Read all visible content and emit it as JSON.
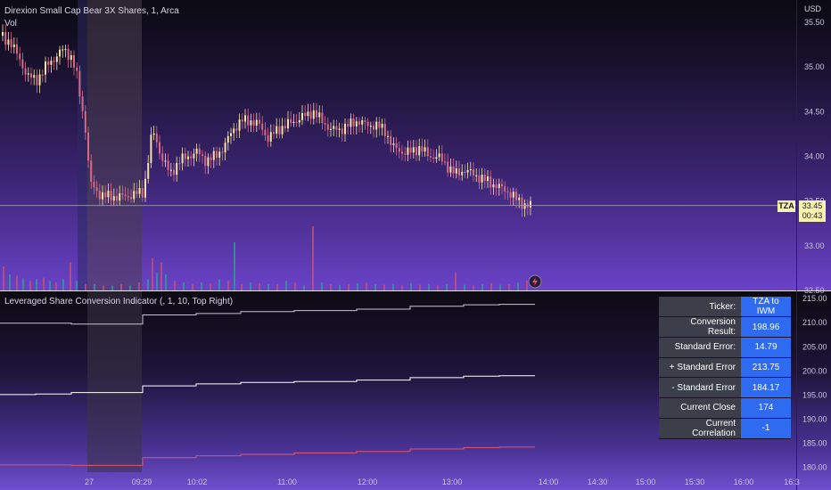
{
  "header": {
    "title": "Direxion Small Cap Bear 3X Shares, 1, Arca",
    "vol_label": "Vol",
    "currency": "USD"
  },
  "indicator": {
    "title": "Leveraged Share Conversion Indicator (, 1, 10, Top Right)"
  },
  "price_tag": {
    "ticker": "TZA",
    "price": "33.45",
    "countdown": "00:43"
  },
  "table": {
    "rows": [
      {
        "label": "Ticker:",
        "value": "TZA to IWM"
      },
      {
        "label": "Conversion Result:",
        "value": "198.96"
      },
      {
        "label": "Standard Error:",
        "value": "14.79"
      },
      {
        "label": "+ Standard Error",
        "value": "213.75"
      },
      {
        "label": "- Standard Error",
        "value": "184.17"
      },
      {
        "label": "Current Close",
        "value": "174"
      },
      {
        "label": "Current Correlation",
        "value": "-1"
      }
    ]
  },
  "colors": {
    "up": "#f3e2a2",
    "down": "#d86a86",
    "grid": "#ffffff",
    "upper": "#c9c3d9",
    "mid": "#ffffff",
    "lower": "#e0556e"
  },
  "chart_data": [
    {
      "type": "candlestick",
      "title": "Direxion Small Cap Bear 3X Shares, 1, Arca",
      "y_ticks": [
        "35.50",
        "35.00",
        "34.50",
        "34.00",
        "33.50",
        "33.00",
        "32.50"
      ],
      "y_tick_values": [
        35.5,
        35.0,
        34.5,
        34.0,
        33.5,
        33.0,
        32.5
      ],
      "ylim": [
        32.5,
        35.75
      ],
      "last_price": 33.45,
      "x_ticks": [
        "27",
        "09:29",
        "10:02",
        "11:00",
        "12:00",
        "13:00",
        "14:00",
        "14:30",
        "15:00",
        "15:30",
        "16:00",
        "16:3"
      ],
      "price_path_x": [
        0,
        5,
        10,
        20,
        30,
        40,
        50,
        60,
        70,
        80,
        85,
        95,
        100,
        110,
        120,
        130,
        140,
        150,
        160,
        165,
        170,
        180,
        190,
        200,
        210,
        220,
        230,
        240,
        250,
        260,
        270,
        280,
        290,
        300,
        310,
        320,
        330,
        340,
        350,
        360,
        370,
        380,
        390,
        400,
        410,
        420,
        430,
        440,
        450,
        460,
        470,
        480,
        490,
        500,
        510,
        520,
        530,
        540,
        550,
        560,
        570,
        580,
        590,
        596
      ],
      "price_path": [
        35.35,
        35.3,
        35.3,
        35.1,
        34.9,
        34.85,
        35.0,
        35.1,
        35.2,
        35.1,
        34.9,
        34.3,
        33.7,
        33.58,
        33.55,
        33.55,
        33.55,
        33.58,
        33.6,
        33.95,
        34.3,
        34.0,
        33.8,
        33.95,
        34.0,
        34.05,
        33.95,
        34.0,
        34.1,
        34.3,
        34.4,
        34.4,
        34.35,
        34.2,
        34.3,
        34.35,
        34.4,
        34.45,
        34.5,
        34.4,
        34.3,
        34.3,
        34.35,
        34.4,
        34.35,
        34.35,
        34.3,
        34.1,
        34.05,
        34.05,
        34.1,
        34.0,
        34.0,
        33.9,
        33.8,
        33.85,
        33.8,
        33.75,
        33.7,
        33.65,
        33.6,
        33.5,
        33.45,
        33.45
      ],
      "volume_x": [
        3,
        10,
        18,
        25,
        33,
        40,
        48,
        55,
        62,
        70,
        78,
        85,
        95,
        105,
        115,
        125,
        135,
        145,
        155,
        165,
        170,
        175,
        180,
        185,
        195,
        205,
        215,
        225,
        235,
        245,
        255,
        262,
        270,
        280,
        290,
        300,
        310,
        320,
        330,
        340,
        350,
        360,
        370,
        380,
        390,
        400,
        410,
        420,
        430,
        440,
        450,
        460,
        470,
        480,
        490,
        500,
        510,
        520,
        530,
        540,
        550,
        560,
        570,
        580,
        590
      ],
      "volume": [
        30,
        20,
        18,
        15,
        12,
        14,
        16,
        12,
        10,
        14,
        35,
        12,
        8,
        8,
        6,
        6,
        8,
        6,
        10,
        14,
        40,
        22,
        35,
        20,
        12,
        10,
        8,
        10,
        9,
        14,
        12,
        60,
        8,
        10,
        9,
        8,
        8,
        12,
        10,
        6,
        80,
        10,
        8,
        7,
        8,
        9,
        10,
        8,
        7,
        8,
        6,
        9,
        7,
        8,
        6,
        8,
        22,
        7,
        6,
        8,
        9,
        7,
        8,
        10,
        12
      ]
    },
    {
      "type": "line",
      "title": "Leveraged Share Conversion Indicator (, 1, 10, Top Right)",
      "y_ticks": [
        "215.00",
        "210.00",
        "205.00",
        "200.00",
        "195.00",
        "190.00",
        "185.00",
        "180.00"
      ],
      "y_tick_values": [
        215,
        210,
        205,
        200,
        195,
        190,
        185,
        180
      ],
      "ylim": [
        179,
        216.5
      ],
      "series": [
        {
          "name": "",
          "x": [
            0,
            40,
            80,
            98,
            155,
            160,
            220,
            270,
            330,
            400,
            460,
            520,
            560,
            600
          ],
          "values": [
            209.9,
            209.9,
            209.7,
            209.7,
            209.7,
            211.6,
            211.9,
            212.3,
            212.5,
            212.8,
            213.4,
            213.7,
            213.8,
            213.8
          ]
        },
        {
          "name": "",
          "x": [
            0,
            40,
            80,
            98,
            155,
            160,
            220,
            270,
            330,
            400,
            460,
            520,
            560,
            600
          ],
          "values": [
            195.1,
            195.2,
            195.5,
            195.5,
            195.5,
            196.9,
            197.3,
            197.6,
            197.8,
            198.1,
            198.6,
            198.9,
            199.0,
            199.0
          ]
        },
        {
          "name": "",
          "x": [
            0,
            40,
            80,
            98,
            155,
            160,
            220,
            270,
            330,
            400,
            460,
            520,
            560,
            600
          ],
          "values": [
            180.5,
            180.5,
            180.4,
            180.4,
            180.4,
            182.0,
            182.4,
            182.7,
            183.0,
            183.3,
            183.8,
            184.1,
            184.2,
            184.2
          ]
        }
      ]
    }
  ]
}
